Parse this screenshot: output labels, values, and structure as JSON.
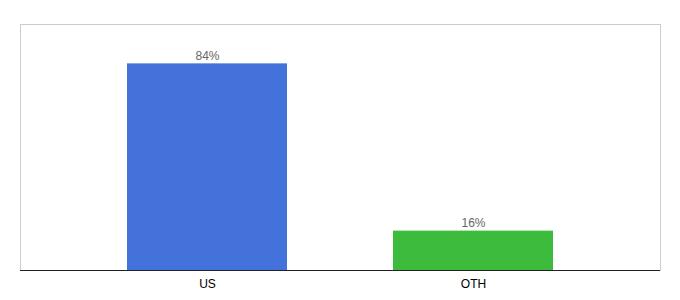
{
  "chart_data": {
    "type": "bar",
    "categories": [
      "US",
      "OTH"
    ],
    "values": [
      84,
      16
    ],
    "value_labels": [
      "84%",
      "16%"
    ],
    "colors": [
      "#4472db",
      "#3dbb3d"
    ],
    "ylim": [
      0,
      100
    ],
    "data_labels": true,
    "tick_labels": "x"
  }
}
